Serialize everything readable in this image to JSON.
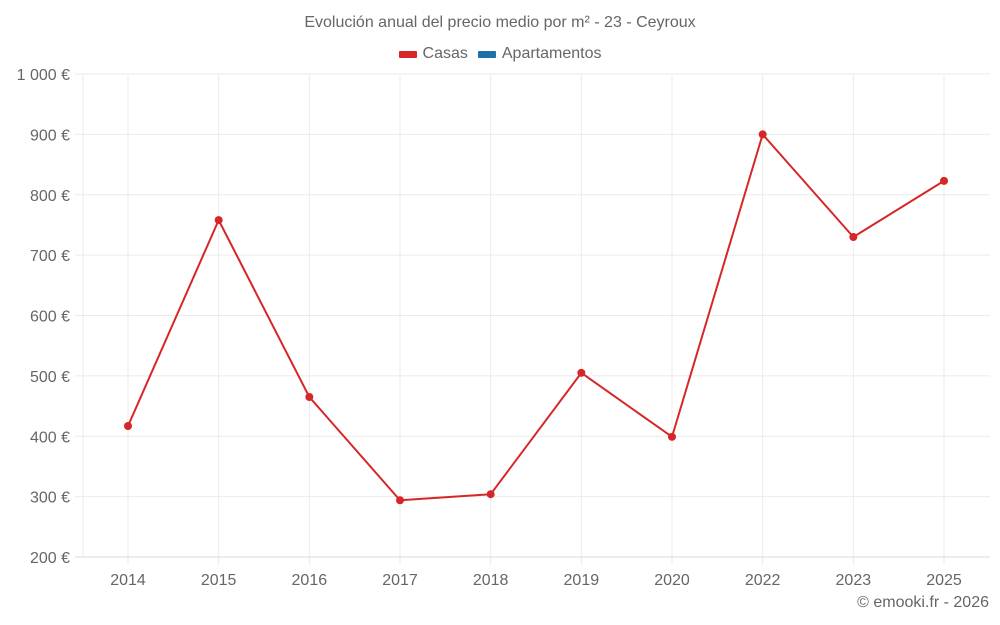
{
  "title": "Evolución anual del precio medio por m² - 23 - Ceyroux",
  "legend": [
    {
      "label": "Casas",
      "color": "#d62728"
    },
    {
      "label": "Apartamentos",
      "color": "#1f6fa8"
    }
  ],
  "credit": "© emooki.fr - 2026",
  "colors": {
    "casas": "#d62728",
    "apartamentos": "#1f6fa8",
    "grid": "#ebebeb",
    "axis": "#d8d8d8"
  },
  "chart_data": {
    "type": "line",
    "title": "Evolución anual del precio medio por m² - 23 - Ceyroux",
    "xlabel": "",
    "ylabel": "",
    "categories": [
      "2014",
      "2015",
      "2016",
      "2017",
      "2018",
      "2019",
      "2020",
      "2022",
      "2023",
      "2025"
    ],
    "series": [
      {
        "name": "Casas",
        "color": "#d62728",
        "values": [
          417,
          758,
          465,
          294,
          304,
          505,
          399,
          900,
          730,
          823
        ]
      },
      {
        "name": "Apartamentos",
        "color": "#1f6fa8",
        "values": []
      }
    ],
    "ylim": [
      200,
      1000
    ],
    "yticks": [
      200,
      300,
      400,
      500,
      600,
      700,
      800,
      900,
      1000
    ],
    "ytick_labels": [
      "200 €",
      "300 €",
      "400 €",
      "500 €",
      "600 €",
      "700 €",
      "800 €",
      "900 €",
      "1 000 €"
    ],
    "grid": true,
    "legend_position": "top"
  }
}
